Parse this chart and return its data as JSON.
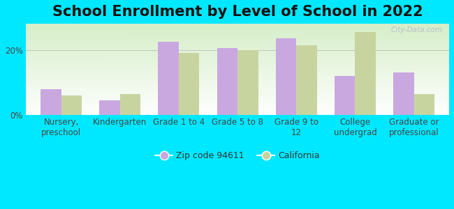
{
  "title": "School Enrollment by Level of School in 2022",
  "categories": [
    "Nursery,\npreschool",
    "Kindergarten",
    "Grade 1 to 4",
    "Grade 5 to 8",
    "Grade 9 to\n12",
    "College\nundergrad",
    "Graduate or\nprofessional"
  ],
  "zip_values": [
    8.0,
    4.5,
    22.5,
    20.5,
    23.5,
    12.0,
    13.0
  ],
  "ca_values": [
    6.0,
    6.5,
    19.0,
    20.0,
    21.5,
    25.5,
    6.5
  ],
  "zip_color": "#c9a8e0",
  "ca_color": "#c8d4a0",
  "background_outer": "#00e8ff",
  "background_inner_topleft": "#d6eec8",
  "background_inner_white": "#ffffff",
  "ylim": [
    0,
    28
  ],
  "yticks": [
    0,
    20
  ],
  "ytick_labels": [
    "0%",
    "20%"
  ],
  "zip_label": "Zip code 94611",
  "ca_label": "California",
  "watermark": "City-Data.com",
  "title_fontsize": 15,
  "axis_fontsize": 8.5,
  "legend_fontsize": 9,
  "bar_width": 0.35
}
